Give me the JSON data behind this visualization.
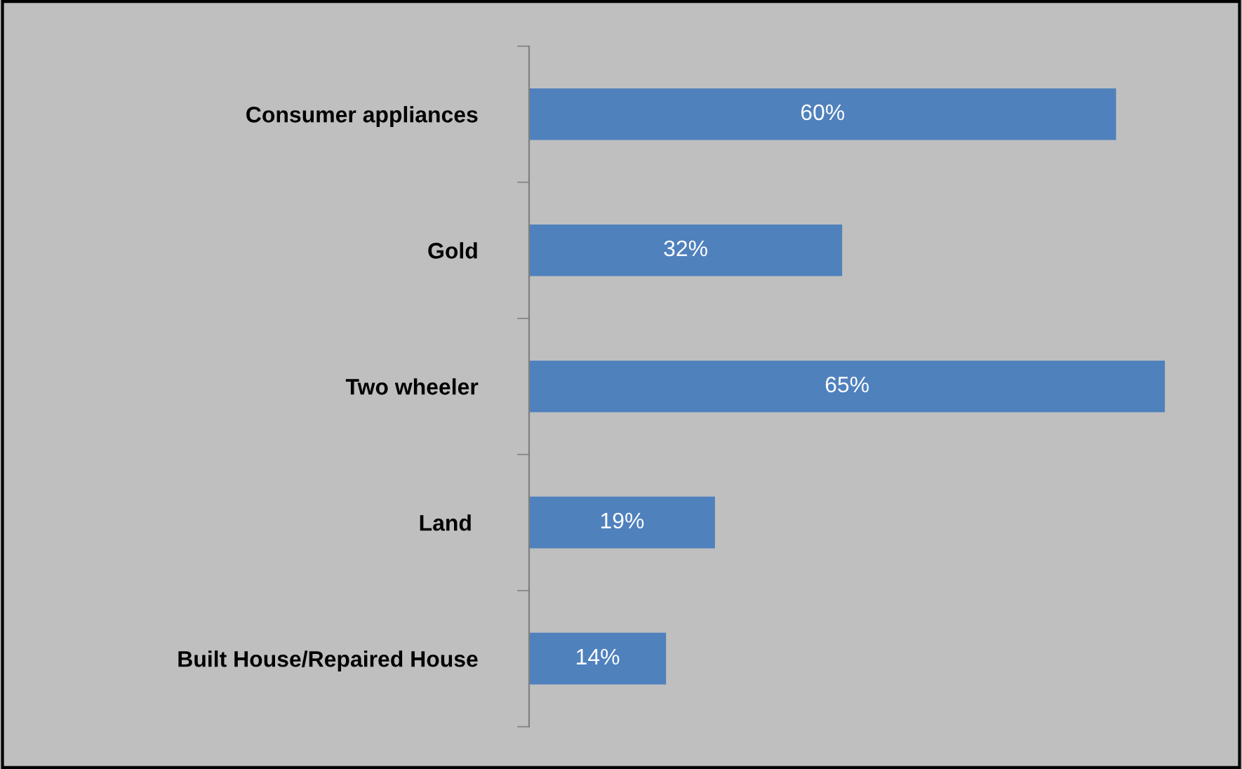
{
  "chart_data": {
    "type": "bar",
    "orientation": "horizontal",
    "categories": [
      "Consumer appliances",
      "Gold",
      "Two wheeler",
      "Land ",
      "Built House/Repaired House"
    ],
    "values": [
      60,
      32,
      65,
      19,
      14
    ],
    "value_labels": [
      "60%",
      "32%",
      "65%",
      "19%",
      "14%"
    ],
    "color": "#4f81bd",
    "grid": false,
    "legend": false
  }
}
